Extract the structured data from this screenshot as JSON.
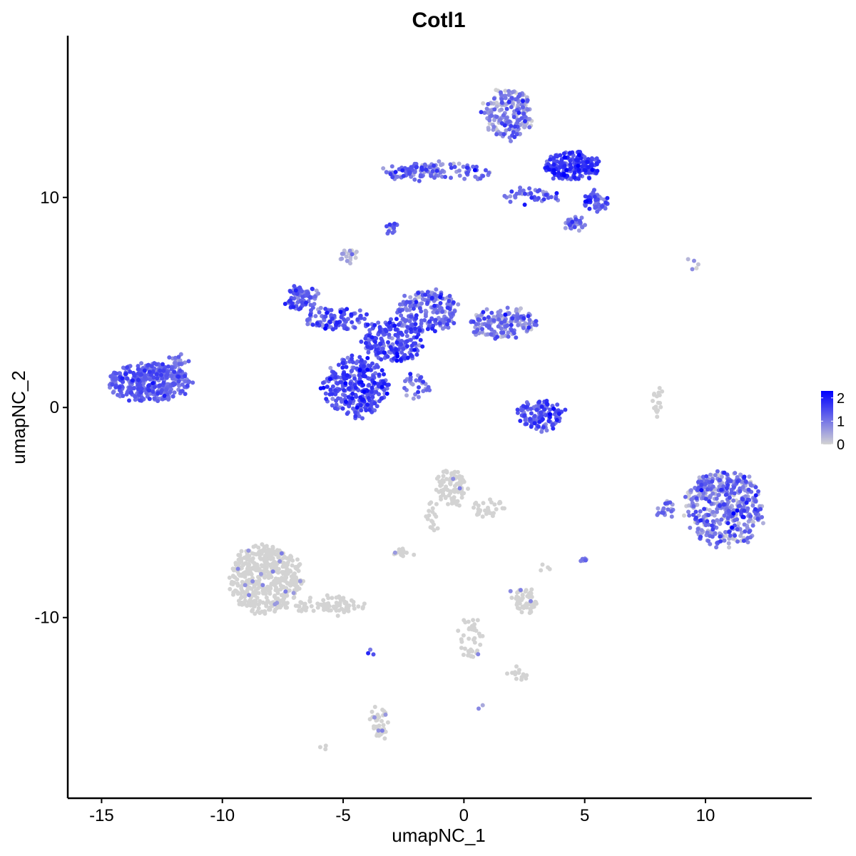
{
  "chart_data": {
    "type": "scatter",
    "title": "Cotl1",
    "xlabel": "umapNC_1",
    "ylabel": "umapNC_2",
    "xlim": [
      -16.4,
      14.4
    ],
    "ylim": [
      -18.6,
      17.7
    ],
    "x_ticks": [
      -15,
      -10,
      -5,
      0,
      5,
      10
    ],
    "x_tick_labels": [
      "-15",
      "-10",
      "-5",
      "0",
      "5",
      "10"
    ],
    "y_ticks": [
      -10,
      0,
      10
    ],
    "y_tick_labels": [
      "-10",
      "0",
      "10"
    ],
    "grid": false,
    "legend": {
      "type": "colorbar",
      "placement": "right",
      "breaks": [
        0,
        1,
        2
      ],
      "labels": [
        "0",
        "1",
        "2"
      ],
      "low_color": "#D3D3D3",
      "high_color": "#0000FF",
      "range": [
        0,
        2.3
      ]
    },
    "clusters": [
      {
        "cx": -13,
        "cy": 1.2,
        "rx": 1.7,
        "ry": 0.9,
        "n": 380,
        "expr": 1.2,
        "spread": 0.3
      },
      {
        "cx": -11.8,
        "cy": 2.3,
        "rx": 0.4,
        "ry": 0.3,
        "n": 20,
        "expr": 1.0,
        "spread": 0.3
      },
      {
        "cx": -4.5,
        "cy": 1.0,
        "rx": 1.3,
        "ry": 1.4,
        "n": 300,
        "expr": 1.4,
        "spread": 0.35
      },
      {
        "cx": -3.0,
        "cy": 3.2,
        "rx": 1.2,
        "ry": 1.0,
        "n": 200,
        "expr": 1.4,
        "spread": 0.4
      },
      {
        "cx": -6.7,
        "cy": 5.2,
        "rx": 0.7,
        "ry": 0.6,
        "n": 80,
        "expr": 1.1,
        "spread": 0.4
      },
      {
        "cx": -5.2,
        "cy": 4.2,
        "rx": 1.3,
        "ry": 0.5,
        "n": 100,
        "expr": 1.2,
        "spread": 0.4
      },
      {
        "cx": -1.5,
        "cy": 4.6,
        "rx": 1.2,
        "ry": 1.0,
        "n": 200,
        "expr": 1.0,
        "spread": 0.45
      },
      {
        "cx": 1.6,
        "cy": 4.0,
        "rx": 1.4,
        "ry": 0.7,
        "n": 160,
        "expr": 0.9,
        "spread": 0.45
      },
      {
        "cx": -4.8,
        "cy": 7.2,
        "rx": 0.3,
        "ry": 0.3,
        "n": 20,
        "expr": 0.4,
        "spread": 0.3
      },
      {
        "cx": -2.0,
        "cy": 1.0,
        "rx": 0.6,
        "ry": 0.5,
        "n": 30,
        "expr": 1.0,
        "spread": 0.4
      },
      {
        "cx": 3.2,
        "cy": -0.4,
        "rx": 0.9,
        "ry": 0.7,
        "n": 120,
        "expr": 1.4,
        "spread": 0.35
      },
      {
        "cx": 1.8,
        "cy": 14.0,
        "rx": 1.0,
        "ry": 1.2,
        "n": 200,
        "expr": 0.8,
        "spread": 0.45
      },
      {
        "cx": 4.5,
        "cy": 11.5,
        "rx": 1.2,
        "ry": 0.7,
        "n": 200,
        "expr": 1.6,
        "spread": 0.35
      },
      {
        "cx": 5.5,
        "cy": 9.8,
        "rx": 0.5,
        "ry": 0.4,
        "n": 60,
        "expr": 1.2,
        "spread": 0.4
      },
      {
        "cx": 4.6,
        "cy": 8.8,
        "rx": 0.4,
        "ry": 0.3,
        "n": 40,
        "expr": 0.9,
        "spread": 0.45
      },
      {
        "cx": -1.2,
        "cy": 11.2,
        "rx": 2.4,
        "ry": 0.4,
        "n": 120,
        "expr": 1.1,
        "spread": 0.4
      },
      {
        "cx": 2.8,
        "cy": 10.1,
        "rx": 1.2,
        "ry": 0.3,
        "n": 40,
        "expr": 1.2,
        "spread": 0.35
      },
      {
        "cx": -2.9,
        "cy": 8.6,
        "rx": 0.2,
        "ry": 0.2,
        "n": 14,
        "expr": 1.2,
        "spread": 0.3
      },
      {
        "cx": 10.8,
        "cy": -4.8,
        "rx": 1.6,
        "ry": 1.8,
        "n": 450,
        "expr": 0.8,
        "spread": 0.55
      },
      {
        "cx": 8.4,
        "cy": -4.9,
        "rx": 0.3,
        "ry": 0.4,
        "n": 20,
        "expr": 0.9,
        "spread": 0.4
      },
      {
        "cx": 8.0,
        "cy": 0.2,
        "rx": 0.2,
        "ry": 0.7,
        "n": 18,
        "expr": 0.2,
        "spread": 0.3
      },
      {
        "cx": 9.5,
        "cy": 6.8,
        "rx": 0.4,
        "ry": 0.2,
        "n": 5,
        "expr": 0.3,
        "spread": 0.3
      },
      {
        "cx": -8.2,
        "cy": -8.2,
        "rx": 1.5,
        "ry": 1.6,
        "n": 500,
        "expr": 0.05,
        "spread": 0.2
      },
      {
        "cx": -5.5,
        "cy": -9.4,
        "rx": 1.5,
        "ry": 0.4,
        "n": 80,
        "expr": 0.05,
        "spread": 0.2
      },
      {
        "cx": -0.5,
        "cy": -3.8,
        "rx": 0.6,
        "ry": 0.8,
        "n": 100,
        "expr": 0.05,
        "spread": 0.2
      },
      {
        "cx": 1.0,
        "cy": -4.7,
        "rx": 0.7,
        "ry": 0.5,
        "n": 30,
        "expr": 0.05,
        "spread": 0.2
      },
      {
        "cx": -1.3,
        "cy": -5.2,
        "rx": 0.2,
        "ry": 0.8,
        "n": 18,
        "expr": 0.05,
        "spread": 0.2
      },
      {
        "cx": -2.6,
        "cy": -6.9,
        "rx": 0.4,
        "ry": 0.2,
        "n": 18,
        "expr": 0.2,
        "spread": 0.3
      },
      {
        "cx": 2.5,
        "cy": -9.2,
        "rx": 0.5,
        "ry": 0.6,
        "n": 60,
        "expr": 0.05,
        "spread": 0.2
      },
      {
        "cx": 5.0,
        "cy": -7.3,
        "rx": 0.15,
        "ry": 0.2,
        "n": 8,
        "expr": 0.8,
        "spread": 0.3
      },
      {
        "cx": 3.4,
        "cy": -7.6,
        "rx": 0.2,
        "ry": 0.2,
        "n": 4,
        "expr": 0.05,
        "spread": 0.2
      },
      {
        "cx": -3.5,
        "cy": -15.0,
        "rx": 0.3,
        "ry": 0.8,
        "n": 40,
        "expr": 0.05,
        "spread": 0.2
      },
      {
        "cx": 0.2,
        "cy": -11.0,
        "rx": 0.5,
        "ry": 1.0,
        "n": 40,
        "expr": 0.05,
        "spread": 0.2
      },
      {
        "cx": 2.3,
        "cy": -12.7,
        "rx": 0.4,
        "ry": 0.3,
        "n": 14,
        "expr": 0.1,
        "spread": 0.2
      },
      {
        "cx": -5.8,
        "cy": -16.2,
        "rx": 0.1,
        "ry": 0.1,
        "n": 3,
        "expr": 0.1,
        "spread": 0.2
      },
      {
        "cx": -3.9,
        "cy": -11.7,
        "rx": 0.08,
        "ry": 0.15,
        "n": 3,
        "expr": 1.2,
        "spread": 0.3
      },
      {
        "cx": 0.6,
        "cy": -14.2,
        "rx": 0.05,
        "ry": 0.05,
        "n": 2,
        "expr": 1.0,
        "spread": 0.3
      }
    ]
  }
}
